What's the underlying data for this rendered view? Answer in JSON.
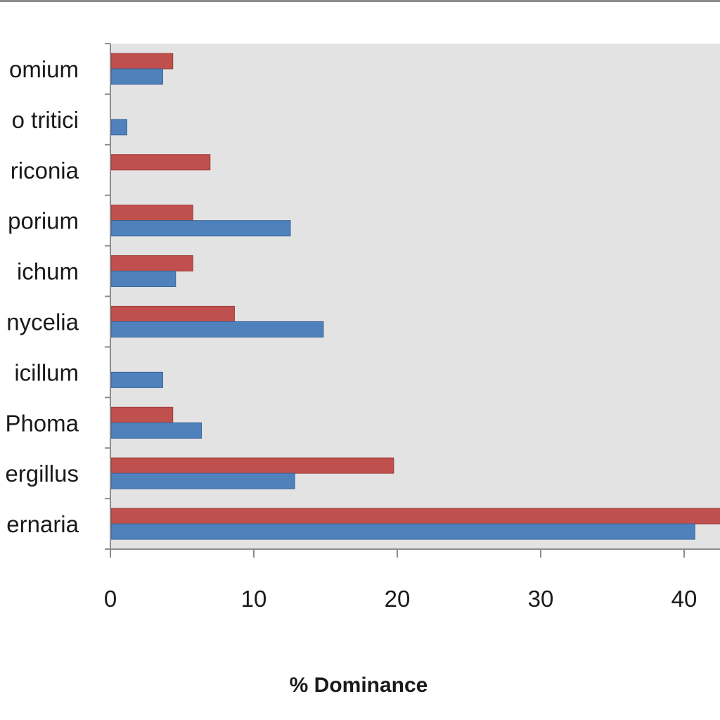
{
  "chart_data": {
    "type": "bar",
    "orientation": "horizontal",
    "title": "",
    "xlabel": "% Dominance",
    "ylabel": "",
    "xlim": [
      0,
      42.5
    ],
    "x_ticks": [
      "0",
      "10",
      "20",
      "30",
      "40"
    ],
    "categories": [
      "omium",
      "o tritici",
      "riconia",
      "porium",
      "ichum",
      "nycelia",
      "icillum",
      "Phoma",
      "ergillus",
      "ernaria"
    ],
    "series": [
      {
        "color": "#c0504d",
        "values": [
          4.3,
          0,
          6.9,
          5.7,
          5.7,
          8.6,
          0,
          4.3,
          19.7,
          43.0
        ]
      },
      {
        "color": "#4f81bd",
        "values": [
          3.6,
          1.1,
          0,
          12.5,
          4.5,
          14.8,
          3.6,
          6.3,
          12.8,
          40.7
        ]
      }
    ],
    "grid": false,
    "legend": "none",
    "colors": {
      "plot_background": "#e3e3e3",
      "axis": "#8c8c8c",
      "frame": "#8c8c8c"
    }
  }
}
